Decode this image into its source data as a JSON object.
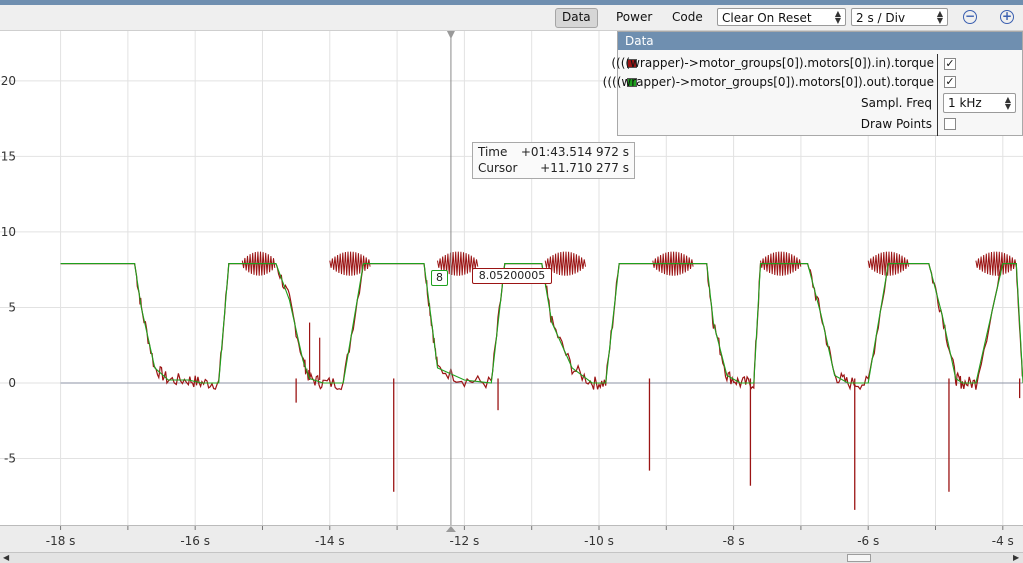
{
  "toolbar": {
    "tab_data": "Data",
    "tab_power": "Power",
    "tab_code": "Code",
    "mode_select": "Clear On Reset",
    "timebase_select": "2 s / Div",
    "zoom_out_label": "−",
    "zoom_in_label": "+"
  },
  "legend": {
    "title": "Data",
    "series": [
      {
        "name": "((((wrapper)->motor_groups[0]).motors[0]).in).torque",
        "color": "#9b1414",
        "visible_label": "✓"
      },
      {
        "name": "((((wrapper)->motor_groups[0]).motors[0]).out).torque",
        "color": "#1ea01e",
        "visible_label": "✓"
      }
    ],
    "sampl_freq_label": "Sampl. Freq",
    "sampl_freq_value": "1 kHz",
    "draw_points_label": "Draw Points",
    "draw_points_checked": ""
  },
  "cursor_info": {
    "time_label": "Time",
    "time_value": "+01:43.514 972 s",
    "cursor_label": "Cursor",
    "cursor_value": "+11.710 277 s"
  },
  "value_labels": {
    "green_value": "8",
    "red_value": "8.05200005"
  },
  "chart_data": {
    "type": "line",
    "xlabel": "",
    "ylabel": "",
    "xlim": [
      -18.9,
      -3.7
    ],
    "ylim": [
      -9.4,
      23.3
    ],
    "x_ticks": [
      -18,
      -16,
      -14,
      -12,
      -10,
      -8,
      -6,
      -4
    ],
    "x_tick_labels": [
      "-18 s",
      "-16 s",
      "-14 s",
      "-12 s",
      "-10 s",
      "-8 s",
      "-6 s",
      "-4 s"
    ],
    "y_ticks": [
      -5,
      0,
      5,
      10,
      15,
      20
    ],
    "y_tick_labels": [
      "-5",
      "0",
      "5",
      "10",
      "15",
      "20"
    ],
    "grid": true,
    "cursor_x": -12.2,
    "series_out": {
      "name": "((((wrapper)->motor_groups[0]).motors[0]).out).torque",
      "color": "#1ea01e",
      "x": [
        -18.0,
        -16.9,
        -16.8,
        -16.6,
        -16.4,
        -16.1,
        -15.9,
        -15.65,
        -15.5,
        -15.4,
        -15.1,
        -14.8,
        -14.6,
        -14.4,
        -14.3,
        -14.1,
        -13.8,
        -13.5,
        -13.3,
        -13.1,
        -13.0,
        -12.8,
        -12.6,
        -12.5,
        -12.4,
        -12.0,
        -11.6,
        -11.4,
        -11.2,
        -11.0,
        -10.85,
        -10.7,
        -10.4,
        -10.1,
        -9.9,
        -9.7,
        -9.6,
        -9.3,
        -9.0,
        -8.4,
        -8.3,
        -8.1,
        -7.9,
        -7.7,
        -7.6,
        -7.3,
        -7.0,
        -6.9,
        -6.7,
        -6.5,
        -6.3,
        -6.0,
        -5.7,
        -5.4,
        -5.2,
        -5.1,
        -4.9,
        -4.7,
        -4.6,
        -4.4,
        -4.0,
        -3.8,
        -3.7
      ],
      "y": [
        7.9,
        7.9,
        5.0,
        1.0,
        0.2,
        0.2,
        0.0,
        0.0,
        7.9,
        7.9,
        7.9,
        7.9,
        5.5,
        1.5,
        0.3,
        0.0,
        0.0,
        7.9,
        7.9,
        7.9,
        7.9,
        7.9,
        7.9,
        4.5,
        1.0,
        0.2,
        0.0,
        7.9,
        7.9,
        7.9,
        7.9,
        4.0,
        1.0,
        0.0,
        0.0,
        7.9,
        7.9,
        7.9,
        7.9,
        7.9,
        4.0,
        0.5,
        0.0,
        0.0,
        7.9,
        7.9,
        7.9,
        7.9,
        4.5,
        0.5,
        0.0,
        0.0,
        7.9,
        7.9,
        7.9,
        7.9,
        4.5,
        0.3,
        0.0,
        0.0,
        7.9,
        7.9,
        0.0
      ]
    },
    "series_in": {
      "name": "((((wrapper)->motor_groups[0]).motors[0]).in).torque",
      "color": "#9b1414",
      "oscillation_bursts": [
        [
          -15.3,
          -14.8
        ],
        [
          -14.0,
          -13.4
        ],
        [
          -12.4,
          -11.8
        ],
        [
          -10.8,
          -10.2
        ],
        [
          -9.2,
          -8.6
        ],
        [
          -7.6,
          -7.0
        ],
        [
          -6.0,
          -5.4
        ],
        [
          -4.4,
          -3.8
        ]
      ],
      "burst_peak": 8.6,
      "burst_trough": 7.3,
      "spikes": [
        {
          "x": -14.5,
          "y": -1.3
        },
        {
          "x": -13.05,
          "y": -7.2
        },
        {
          "x": -11.5,
          "y": -1.8
        },
        {
          "x": -9.25,
          "y": -5.8
        },
        {
          "x": -7.75,
          "y": -6.8
        },
        {
          "x": -6.2,
          "y": -8.4
        },
        {
          "x": -4.8,
          "y": -7.2
        },
        {
          "x": -3.75,
          "y": -1.0
        }
      ],
      "secondary_spikes": [
        {
          "x": -14.3,
          "y": 4.0
        },
        {
          "x": -14.15,
          "y": 3.0
        },
        {
          "x": -13.2,
          "y": 0.2
        }
      ]
    }
  }
}
